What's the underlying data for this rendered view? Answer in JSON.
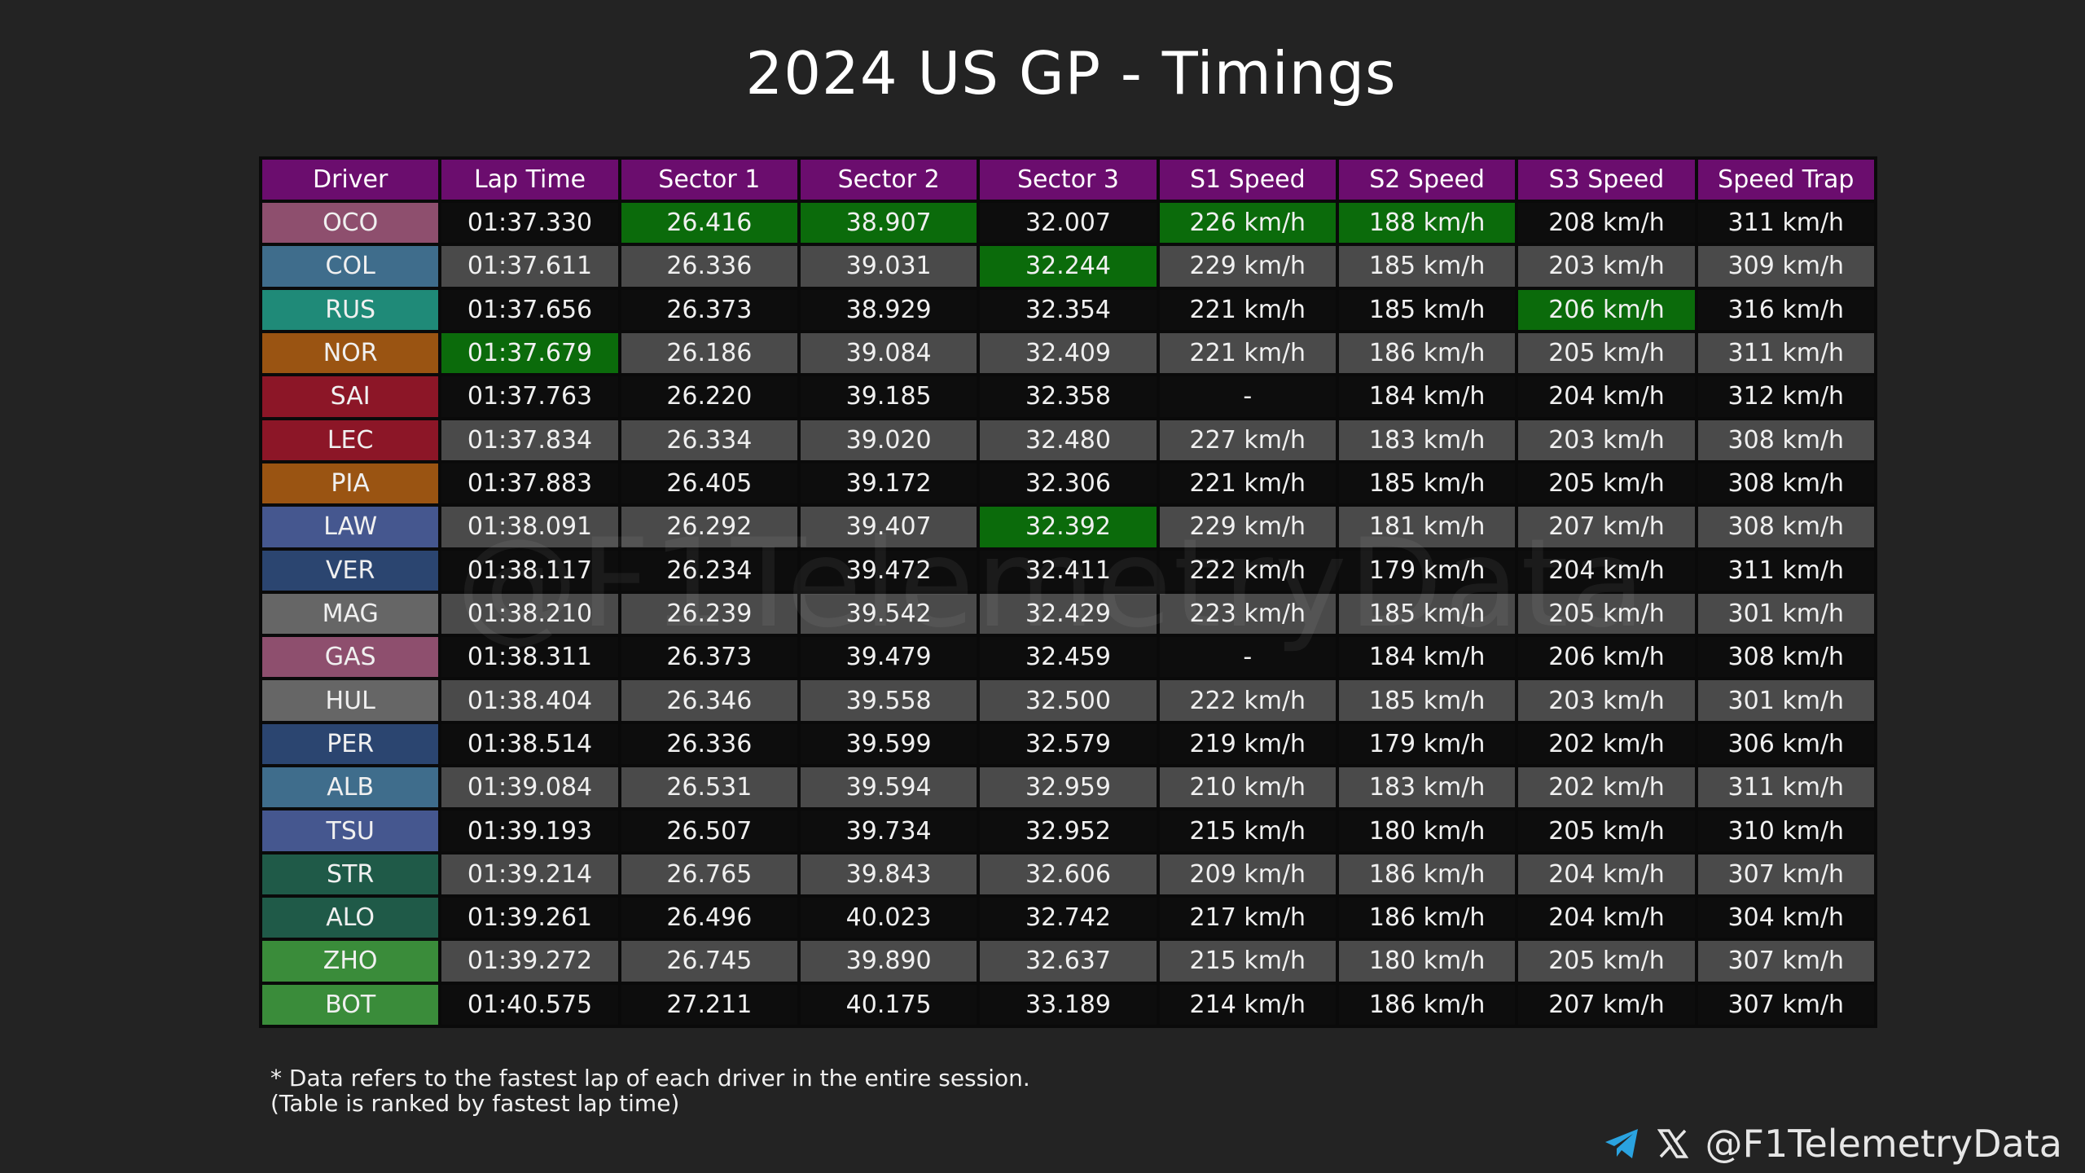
{
  "title": "2024 US GP - Timings",
  "watermark": "@F1TelemetryData",
  "notes": {
    "line1": "* Data refers to the fastest lap of each driver in the entire session.",
    "line2": "(Table is ranked by fastest lap time)"
  },
  "social": {
    "handle": "@F1TelemetryData",
    "icons": [
      "telegram-icon",
      "x-icon"
    ]
  },
  "colors": {
    "header": "#6b0d6e",
    "best": "#0b6b0b",
    "row_dark": "#0d0d0d",
    "row_light": "#4a4a4a"
  },
  "chart_data": {
    "type": "table",
    "title": "2024 US GP - Timings",
    "columns": [
      "Driver",
      "Lap Time",
      "Sector 1",
      "Sector 2",
      "Sector 3",
      "S1 Speed",
      "S2 Speed",
      "S3 Speed",
      "Speed Trap"
    ],
    "rows": [
      {
        "driver": "OCO",
        "color": "#8e4f6e",
        "values": [
          "01:37.330",
          "26.416",
          "38.907",
          "32.007",
          "226 km/h",
          "188 km/h",
          "208 km/h",
          "311 km/h"
        ],
        "best": [
          2,
          3,
          5,
          6
        ]
      },
      {
        "driver": "COL",
        "color": "#3f6d8c",
        "values": [
          "01:37.611",
          "26.336",
          "39.031",
          "32.244",
          "229 km/h",
          "185 km/h",
          "203 km/h",
          "309 km/h"
        ],
        "best": [
          4
        ]
      },
      {
        "driver": "RUS",
        "color": "#1f8a78",
        "values": [
          "01:37.656",
          "26.373",
          "38.929",
          "32.354",
          "221 km/h",
          "185 km/h",
          "206 km/h",
          "316 km/h"
        ],
        "best": [
          7
        ]
      },
      {
        "driver": "NOR",
        "color": "#9a5412",
        "values": [
          "01:37.679",
          "26.186",
          "39.084",
          "32.409",
          "221 km/h",
          "186 km/h",
          "205 km/h",
          "311 km/h"
        ],
        "best": [
          1
        ]
      },
      {
        "driver": "SAI",
        "color": "#8c1627",
        "values": [
          "01:37.763",
          "26.220",
          "39.185",
          "32.358",
          "-",
          "184 km/h",
          "204 km/h",
          "312 km/h"
        ],
        "best": []
      },
      {
        "driver": "LEC",
        "color": "#8c1627",
        "values": [
          "01:37.834",
          "26.334",
          "39.020",
          "32.480",
          "227 km/h",
          "183 km/h",
          "203 km/h",
          "308 km/h"
        ],
        "best": []
      },
      {
        "driver": "PIA",
        "color": "#9a5412",
        "values": [
          "01:37.883",
          "26.405",
          "39.172",
          "32.306",
          "221 km/h",
          "185 km/h",
          "205 km/h",
          "308 km/h"
        ],
        "best": []
      },
      {
        "driver": "LAW",
        "color": "#45578f",
        "values": [
          "01:38.091",
          "26.292",
          "39.407",
          "32.392",
          "229 km/h",
          "181 km/h",
          "207 km/h",
          "308 km/h"
        ],
        "best": [
          4
        ]
      },
      {
        "driver": "VER",
        "color": "#2b4570",
        "values": [
          "01:38.117",
          "26.234",
          "39.472",
          "32.411",
          "222 km/h",
          "179 km/h",
          "204 km/h",
          "311 km/h"
        ],
        "best": []
      },
      {
        "driver": "MAG",
        "color": "#666666",
        "values": [
          "01:38.210",
          "26.239",
          "39.542",
          "32.429",
          "223 km/h",
          "185 km/h",
          "205 km/h",
          "301 km/h"
        ],
        "best": []
      },
      {
        "driver": "GAS",
        "color": "#8e4f6e",
        "values": [
          "01:38.311",
          "26.373",
          "39.479",
          "32.459",
          "-",
          "184 km/h",
          "206 km/h",
          "308 km/h"
        ],
        "best": []
      },
      {
        "driver": "HUL",
        "color": "#666666",
        "values": [
          "01:38.404",
          "26.346",
          "39.558",
          "32.500",
          "222 km/h",
          "185 km/h",
          "203 km/h",
          "301 km/h"
        ],
        "best": []
      },
      {
        "driver": "PER",
        "color": "#2b4570",
        "values": [
          "01:38.514",
          "26.336",
          "39.599",
          "32.579",
          "219 km/h",
          "179 km/h",
          "202 km/h",
          "306 km/h"
        ],
        "best": []
      },
      {
        "driver": "ALB",
        "color": "#3f6d8c",
        "values": [
          "01:39.084",
          "26.531",
          "39.594",
          "32.959",
          "210 km/h",
          "183 km/h",
          "202 km/h",
          "311 km/h"
        ],
        "best": []
      },
      {
        "driver": "TSU",
        "color": "#45578f",
        "values": [
          "01:39.193",
          "26.507",
          "39.734",
          "32.952",
          "215 km/h",
          "180 km/h",
          "205 km/h",
          "310 km/h"
        ],
        "best": []
      },
      {
        "driver": "STR",
        "color": "#1f5a48",
        "values": [
          "01:39.214",
          "26.765",
          "39.843",
          "32.606",
          "209 km/h",
          "186 km/h",
          "204 km/h",
          "307 km/h"
        ],
        "best": []
      },
      {
        "driver": "ALO",
        "color": "#1f5a48",
        "values": [
          "01:39.261",
          "26.496",
          "40.023",
          "32.742",
          "217 km/h",
          "186 km/h",
          "204 km/h",
          "304 km/h"
        ],
        "best": []
      },
      {
        "driver": "ZHO",
        "color": "#3a8c3a",
        "values": [
          "01:39.272",
          "26.745",
          "39.890",
          "32.637",
          "215 km/h",
          "180 km/h",
          "205 km/h",
          "307 km/h"
        ],
        "best": []
      },
      {
        "driver": "BOT",
        "color": "#3a8c3a",
        "values": [
          "01:40.575",
          "27.211",
          "40.175",
          "33.189",
          "214 km/h",
          "186 km/h",
          "207 km/h",
          "307 km/h"
        ],
        "best": []
      }
    ]
  }
}
